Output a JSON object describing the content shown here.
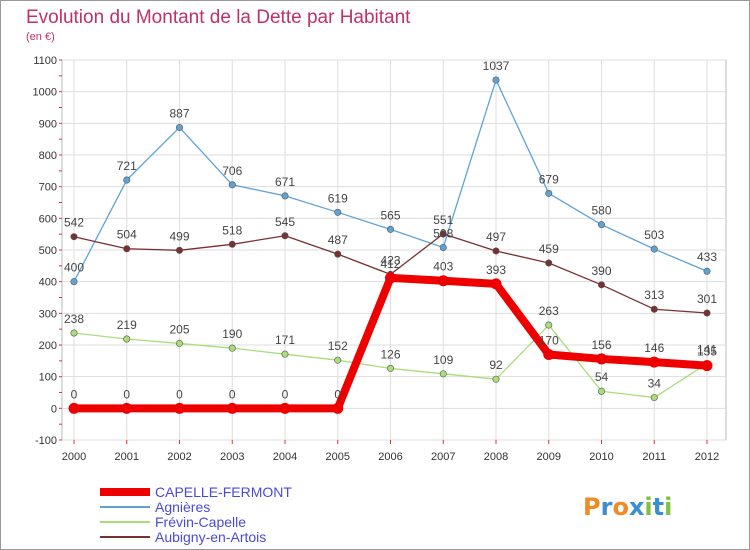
{
  "chart_data": {
    "type": "line",
    "title": "Evolution du Montant de la Dette par Habitant",
    "subtitle": "(en €)",
    "x": [
      "2000",
      "2001",
      "2002",
      "2003",
      "2004",
      "2005",
      "2006",
      "2007",
      "2008",
      "2009",
      "2010",
      "2011",
      "2012"
    ],
    "ylim": [
      -100,
      1100
    ],
    "yticks": [
      -100,
      0,
      100,
      200,
      300,
      400,
      500,
      600,
      700,
      800,
      900,
      1000,
      1100
    ],
    "grid": true,
    "legend_position": "bottom-left",
    "series": [
      {
        "name": "CAPELLE-FERMONT",
        "color": "#ee0000",
        "values": [
          0,
          0,
          0,
          0,
          0,
          0,
          412,
          403,
          393,
          170,
          156,
          146,
          135
        ]
      },
      {
        "name": "Agnières",
        "color": "#5fa3d6",
        "values": [
          400,
          721,
          887,
          706,
          671,
          619,
          565,
          508,
          1037,
          679,
          580,
          503,
          433
        ]
      },
      {
        "name": "Frévin-Capelle",
        "color": "#a8dd7a",
        "values": [
          238,
          219,
          205,
          190,
          171,
          152,
          126,
          109,
          92,
          263,
          54,
          34,
          141
        ]
      },
      {
        "name": "Aubigny-en-Artois",
        "color": "#7a3030",
        "values": [
          542,
          504,
          499,
          518,
          545,
          487,
          423,
          551,
          497,
          459,
          390,
          313,
          301
        ]
      }
    ]
  },
  "logo": {
    "text": "Proxiti",
    "colors": [
      "#f08a24",
      "#3a8fd0",
      "#f08a24",
      "#3a8fd0",
      "#80c040",
      "#3a8fd0",
      "#80c040"
    ]
  },
  "colors": {
    "title": "#c0306a",
    "axis": "#aaaaaa",
    "grid": "#dddddd"
  }
}
